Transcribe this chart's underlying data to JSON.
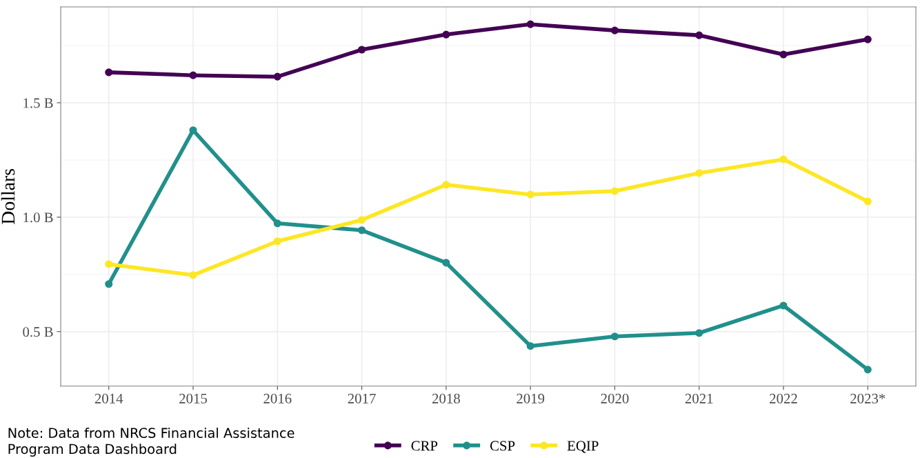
{
  "chart_data": {
    "type": "line",
    "ylabel": "Dollars",
    "categories": [
      "2014",
      "2015",
      "2016",
      "2017",
      "2018",
      "2019",
      "2020",
      "2021",
      "2022",
      "2023*"
    ],
    "series": [
      {
        "name": "CRP",
        "color": "#440154",
        "values": [
          1.633,
          1.62,
          1.614,
          1.732,
          1.798,
          1.843,
          1.816,
          1.795,
          1.711,
          1.777
        ]
      },
      {
        "name": "CSP",
        "color": "#21908c",
        "values": [
          0.708,
          1.38,
          0.973,
          0.943,
          0.801,
          0.437,
          0.479,
          0.494,
          0.614,
          0.334
        ]
      },
      {
        "name": "EQIP",
        "color": "#fde725",
        "values": [
          0.795,
          0.747,
          0.895,
          0.988,
          1.142,
          1.099,
          1.114,
          1.193,
          1.253,
          1.069
        ]
      }
    ],
    "ylim": [
      0.262,
      1.919
    ],
    "yticks": [
      {
        "value": 0.5,
        "label": "0.5 B"
      },
      {
        "value": 1.0,
        "label": "1.0 B"
      },
      {
        "value": 1.5,
        "label": "1.5 B"
      }
    ],
    "grid": true,
    "legend": "bottom",
    "marker": "circle",
    "line_style": "solid",
    "annotations": [
      "Note: Data from NRCS Financial Assistance\nProgram Data Dashboard"
    ]
  }
}
